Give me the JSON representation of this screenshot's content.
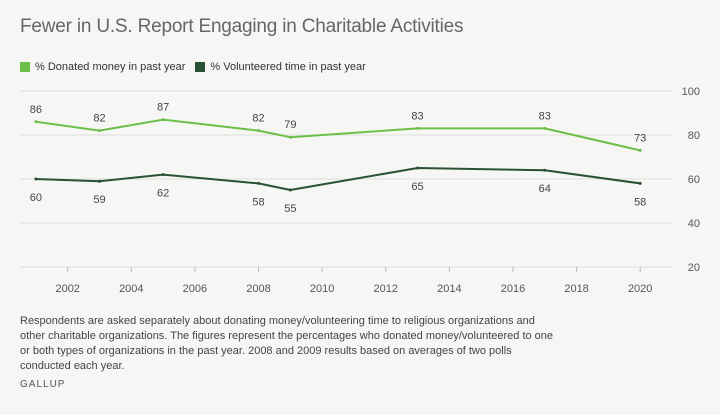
{
  "colors": {
    "donated": "#6cc04a",
    "volunteered": "#2b5134",
    "grid": "#dddddd",
    "axis_text": "#555555",
    "label_text": "#444444"
  },
  "legend": {
    "donated_label": "% Donated money in past year",
    "volunteered_label": "% Volunteered time in past year"
  },
  "note": "Respondents are asked separately about donating money/volunteering time to religious organizations and other charitable organizations. The figures represent the percentages who donated money/volunteered to one or both types of organizations in the past year. 2008 and 2009 results based on averages of two polls conducted each year.",
  "source": "GALLUP",
  "chart_data": {
    "type": "line",
    "title": "Fewer in U.S. Report Engaging in Charitable Activities",
    "xlabel": "",
    "ylabel": "",
    "xlim": [
      2000.5,
      2021
    ],
    "ylim": [
      20,
      100
    ],
    "x_ticks": [
      2002,
      2004,
      2006,
      2008,
      2010,
      2012,
      2014,
      2016,
      2018,
      2020
    ],
    "y_ticks": [
      20,
      40,
      60,
      80,
      100
    ],
    "grid": true,
    "legend_position": "top-left",
    "series": [
      {
        "name": "% Donated money in past year",
        "color_key": "donated",
        "x": [
          2001,
          2003,
          2005,
          2008,
          2009,
          2013,
          2017,
          2020
        ],
        "values": [
          86,
          82,
          87,
          82,
          79,
          83,
          83,
          73
        ],
        "label_placement": "above"
      },
      {
        "name": "% Volunteered time in past year",
        "color_key": "volunteered",
        "x": [
          2001,
          2003,
          2005,
          2008,
          2009,
          2013,
          2017,
          2020
        ],
        "values": [
          60,
          59,
          62,
          58,
          55,
          65,
          64,
          58
        ],
        "label_placement": "below"
      }
    ]
  }
}
